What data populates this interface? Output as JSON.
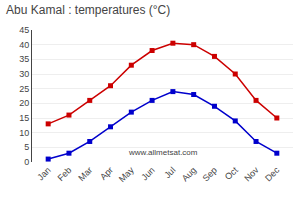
{
  "chart_data": {
    "type": "line",
    "title": "Abu Kamal : temperatures (°C)",
    "categories": [
      "Jan",
      "Feb",
      "Mar",
      "Apr",
      "May",
      "Jun",
      "Jul",
      "Aug",
      "Sep",
      "Oct",
      "Nov",
      "Dec"
    ],
    "series": [
      {
        "color": "#cc0000",
        "values": [
          13,
          16,
          21,
          26,
          33,
          38,
          40.5,
          40,
          36,
          30,
          21,
          15
        ]
      },
      {
        "color": "#0000cc",
        "values": [
          1,
          3,
          7,
          12,
          17,
          21,
          24,
          23,
          19,
          14,
          7,
          3
        ]
      }
    ],
    "ylim": [
      0,
      45
    ],
    "yticks": [
      0,
      5,
      10,
      15,
      20,
      25,
      30,
      35,
      40,
      45
    ],
    "grid": true,
    "marker": "square",
    "annotations": [
      "www.allmetsat.com"
    ]
  }
}
